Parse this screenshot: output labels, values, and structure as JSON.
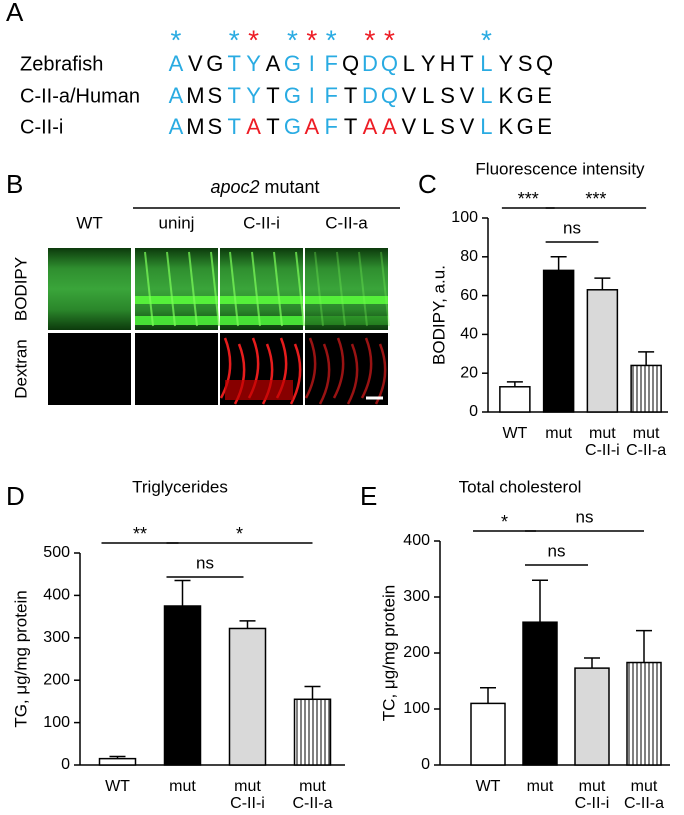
{
  "panel_a": {
    "label": "A",
    "markers": [
      {
        "position": 0,
        "symbol": "*",
        "color": "#29abe2"
      },
      {
        "position": 3,
        "symbol": "*",
        "color": "#29abe2"
      },
      {
        "position": 4,
        "symbol": "*",
        "color": "#ed1c24"
      },
      {
        "position": 6,
        "symbol": "*",
        "color": "#29abe2"
      },
      {
        "position": 7,
        "symbol": "*",
        "color": "#ed1c24"
      },
      {
        "position": 8,
        "symbol": "*",
        "color": "#29abe2"
      },
      {
        "position": 10,
        "symbol": "*",
        "color": "#ed1c24"
      },
      {
        "position": 11,
        "symbol": "*",
        "color": "#ed1c24"
      },
      {
        "position": 16,
        "symbol": "*",
        "color": "#29abe2"
      }
    ],
    "rows": [
      {
        "name": "Zebrafish",
        "sequence": "AVGTYAGIFQDQLYHTLYSQ",
        "colors": [
          "#29abe2",
          "#000",
          "#000",
          "#29abe2",
          "#29abe2",
          "#000",
          "#29abe2",
          "#29abe2",
          "#29abe2",
          "#000",
          "#29abe2",
          "#29abe2",
          "#000",
          "#000",
          "#000",
          "#000",
          "#29abe2",
          "#000",
          "#000",
          "#000"
        ]
      },
      {
        "name": "C-II-a/Human",
        "sequence": "AMSTYTGIFTDQVLSVLKGE",
        "colors": [
          "#29abe2",
          "#000",
          "#000",
          "#29abe2",
          "#29abe2",
          "#000",
          "#29abe2",
          "#29abe2",
          "#29abe2",
          "#000",
          "#29abe2",
          "#29abe2",
          "#000",
          "#000",
          "#000",
          "#000",
          "#29abe2",
          "#000",
          "#000",
          "#000"
        ]
      },
      {
        "name": "C-II-i",
        "sequence": "AMSTATGAFTAAVLSVLKGE",
        "colors": [
          "#29abe2",
          "#000",
          "#000",
          "#29abe2",
          "#ed1c24",
          "#000",
          "#29abe2",
          "#ed1c24",
          "#29abe2",
          "#000",
          "#ed1c24",
          "#ed1c24",
          "#000",
          "#000",
          "#000",
          "#000",
          "#29abe2",
          "#000",
          "#000",
          "#000"
        ]
      }
    ]
  },
  "panel_b": {
    "label": "B",
    "group_label": {
      "gene": "apoc2",
      "text": "mutant"
    },
    "columns": [
      "WT",
      "uninj",
      "C-II-i",
      "C-II-a"
    ],
    "rows": [
      "BODIPY",
      "Dextran"
    ]
  },
  "chart_data": [
    {
      "type": "bar",
      "panel": "C",
      "title": "Fluorescence intensity",
      "y_label": "BODIPY, a.u.",
      "categories": [
        [
          "WT"
        ],
        [
          "mut"
        ],
        [
          "mut",
          "C-II-i"
        ],
        [
          "mut",
          "C-II-a"
        ]
      ],
      "values": [
        13,
        73,
        63,
        24
      ],
      "errors": [
        2.5,
        7,
        6,
        7
      ],
      "colors": [
        "#ffffff",
        "#000000",
        "#d9d9d9",
        "#ffffff"
      ],
      "hatches": [
        null,
        null,
        null,
        "vertical"
      ],
      "ylim": [
        0,
        100
      ],
      "yticks": [
        0,
        20,
        40,
        60,
        80,
        100
      ],
      "annotations": [
        {
          "from": 0,
          "to": 1,
          "label": "***"
        },
        {
          "from": 1,
          "to": 3,
          "label": "***"
        },
        {
          "from": 1,
          "to": 2,
          "label": "ns"
        }
      ]
    },
    {
      "type": "bar",
      "panel": "D",
      "title": "Triglycerides",
      "y_label": "TG, μg/mg protein",
      "categories": [
        [
          "WT"
        ],
        [
          "mut"
        ],
        [
          "mut",
          "C-II-i"
        ],
        [
          "mut",
          "C-II-a"
        ]
      ],
      "values": [
        15,
        375,
        322,
        155
      ],
      "errors": [
        5,
        60,
        18,
        30
      ],
      "colors": [
        "#ffffff",
        "#000000",
        "#d9d9d9",
        "#ffffff"
      ],
      "hatches": [
        null,
        null,
        null,
        "vertical"
      ],
      "ylim": [
        0,
        500
      ],
      "yticks": [
        0,
        100,
        200,
        300,
        400,
        500
      ],
      "annotations": [
        {
          "from": 0,
          "to": 1,
          "label": "**"
        },
        {
          "from": 1,
          "to": 3,
          "label": "*"
        },
        {
          "from": 1,
          "to": 2,
          "label": "ns"
        }
      ]
    },
    {
      "type": "bar",
      "panel": "E",
      "title": "Total cholesterol",
      "y_label": "TC, μg/mg protein",
      "categories": [
        [
          "WT"
        ],
        [
          "mut"
        ],
        [
          "mut",
          "C-II-i"
        ],
        [
          "mut",
          "C-II-a"
        ]
      ],
      "values": [
        110,
        255,
        173,
        183
      ],
      "errors": [
        28,
        75,
        18,
        57
      ],
      "colors": [
        "#ffffff",
        "#000000",
        "#d9d9d9",
        "#ffffff"
      ],
      "hatches": [
        null,
        null,
        null,
        "vertical"
      ],
      "ylim": [
        0,
        400
      ],
      "yticks": [
        0,
        100,
        200,
        300,
        400
      ],
      "annotations": [
        {
          "from": 0,
          "to": 1,
          "label": "*"
        },
        {
          "from": 1,
          "to": 3,
          "label": "ns"
        },
        {
          "from": 1,
          "to": 2,
          "label": "ns"
        }
      ]
    }
  ]
}
